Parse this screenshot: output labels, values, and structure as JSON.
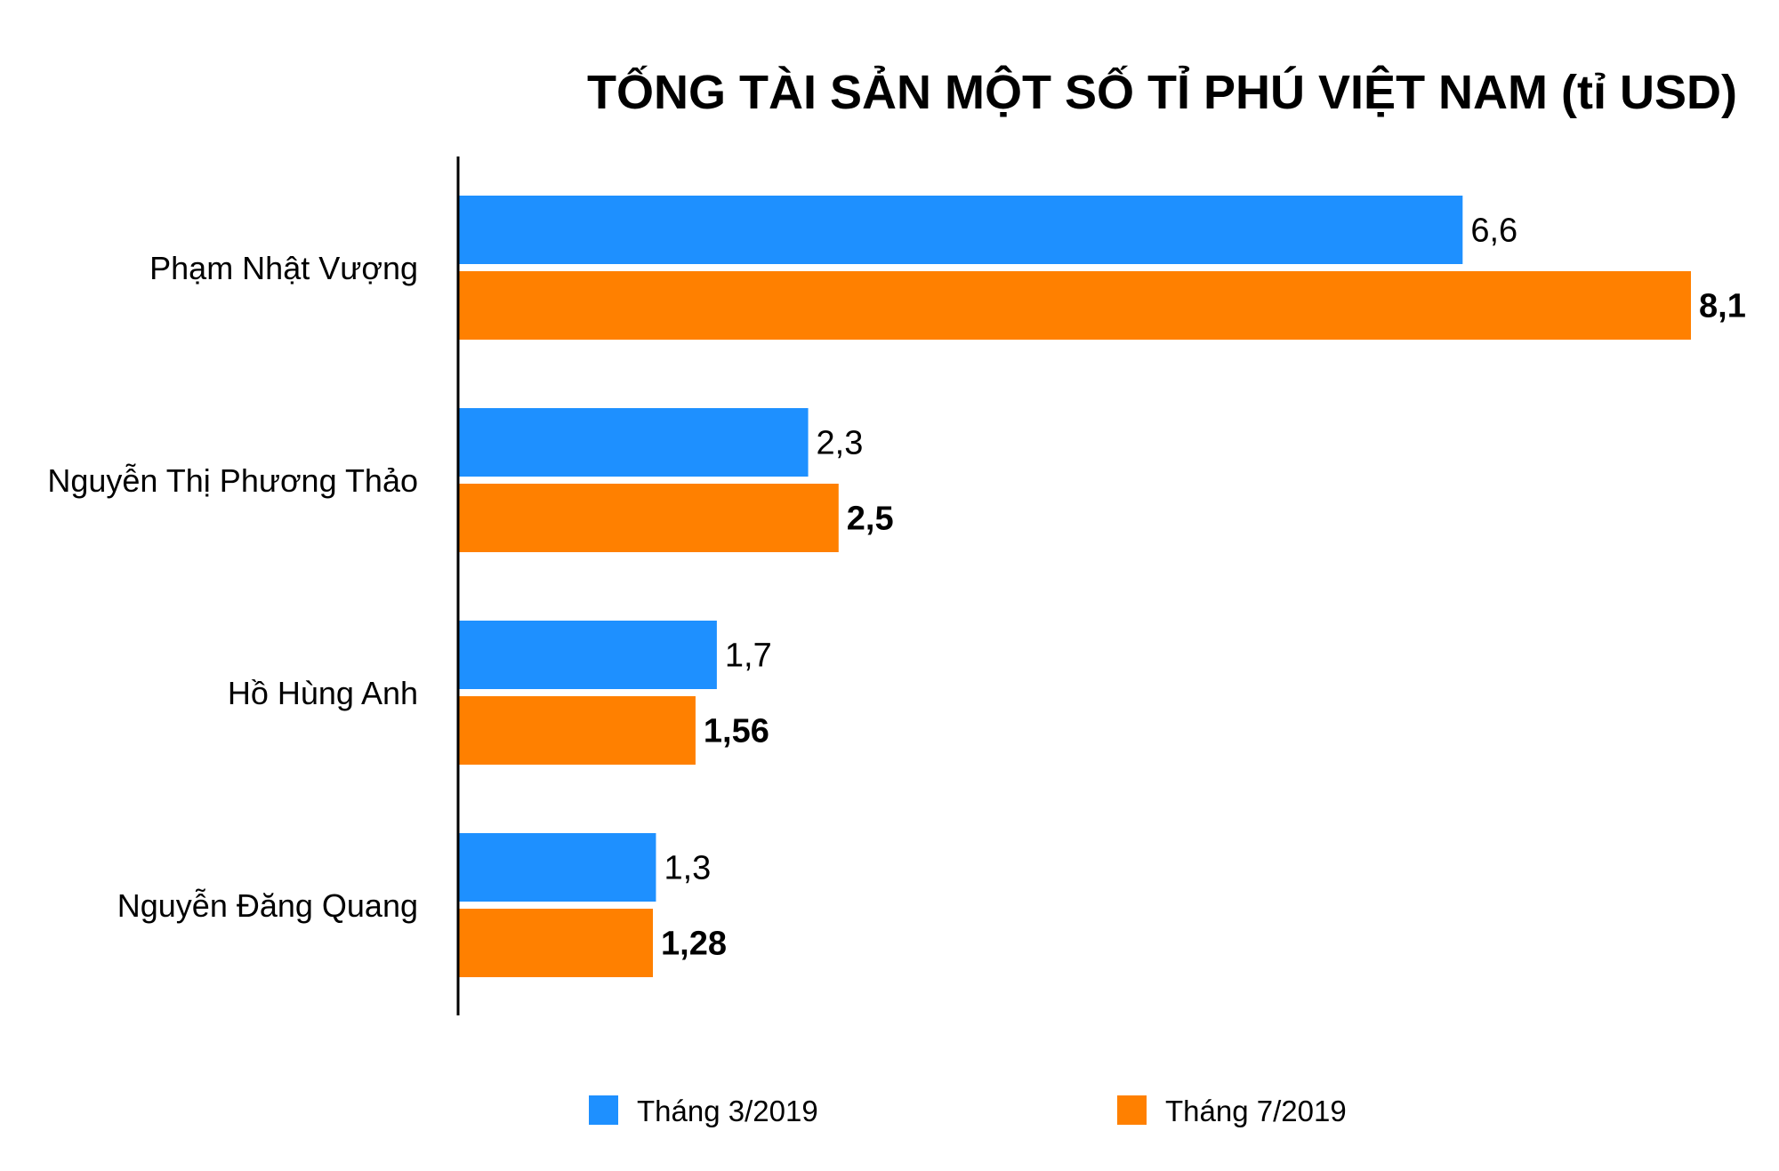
{
  "chart_data": {
    "type": "bar",
    "orientation": "horizontal",
    "title": "TỐNG TÀI SẢN MỘT SỐ TỈ PHÚ VIỆT NAM (tỉ USD)",
    "categories": [
      "Phạm Nhật Vượng",
      "Nguyễn Thị Phương Thảo",
      "Hồ Hùng Anh",
      "Nguyễn Đăng Quang"
    ],
    "series": [
      {
        "name": "Tháng 3/2019",
        "color": "#1E90FF",
        "values": [
          6.6,
          2.3,
          1.7,
          1.3
        ],
        "labels": [
          "6,6",
          "2,3",
          "1,7",
          "1,3"
        ],
        "label_weight": "normal"
      },
      {
        "name": "Tháng 7/2019",
        "color": "#FF8000",
        "values": [
          8.1,
          2.5,
          1.56,
          1.28
        ],
        "labels": [
          "8,1",
          "2,5",
          "1,56",
          "1,28"
        ],
        "label_weight": "bold"
      }
    ],
    "xlim": [
      0,
      8.1
    ],
    "grid": false,
    "legend_position": "bottom",
    "axis_color": "#000000"
  }
}
